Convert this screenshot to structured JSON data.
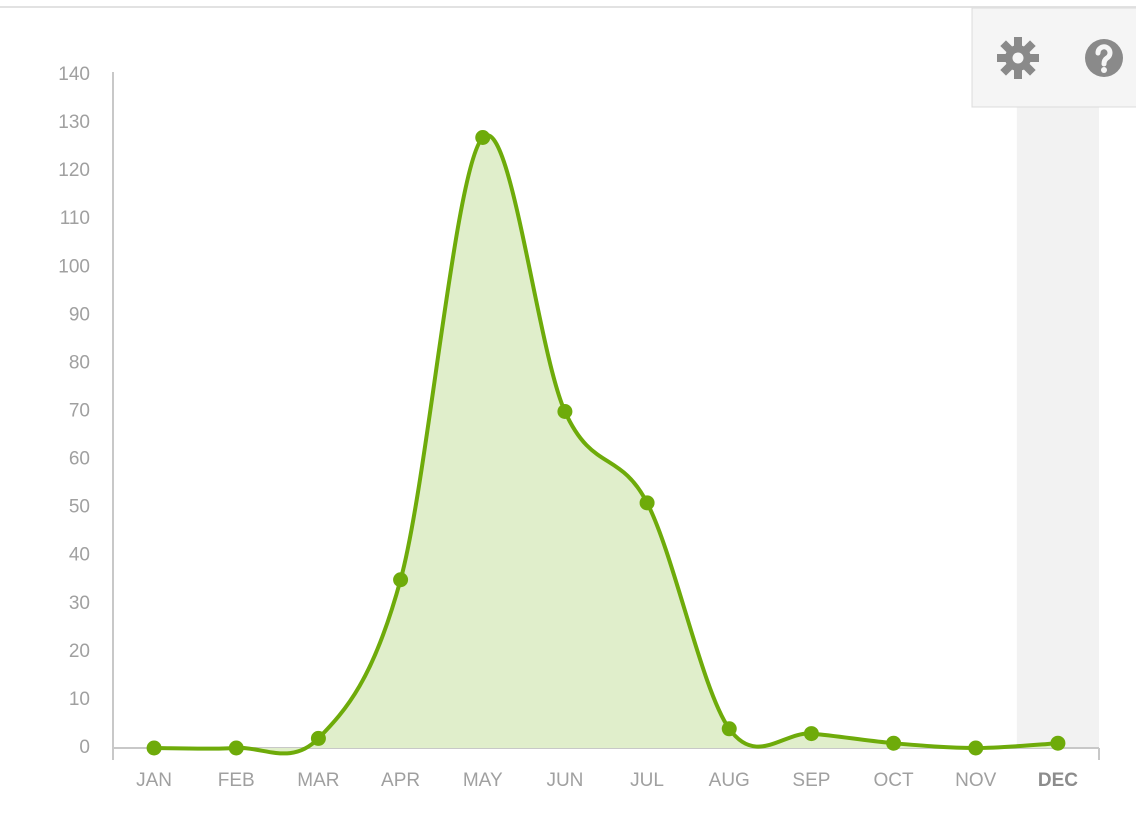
{
  "chart_data": {
    "type": "area",
    "categories": [
      "JAN",
      "FEB",
      "MAR",
      "APR",
      "MAY",
      "JUN",
      "JUL",
      "AUG",
      "SEP",
      "OCT",
      "NOV",
      "DEC"
    ],
    "values": [
      0,
      0,
      2,
      35,
      127,
      70,
      51,
      4,
      3,
      1,
      0,
      1
    ],
    "color": "#6eab0a",
    "fill": "#e0eecb",
    "ylim": [
      0,
      140
    ],
    "yticks": [
      0,
      10,
      20,
      30,
      40,
      50,
      60,
      70,
      80,
      90,
      100,
      110,
      120,
      130,
      140
    ],
    "highlight_index": 11
  }
}
